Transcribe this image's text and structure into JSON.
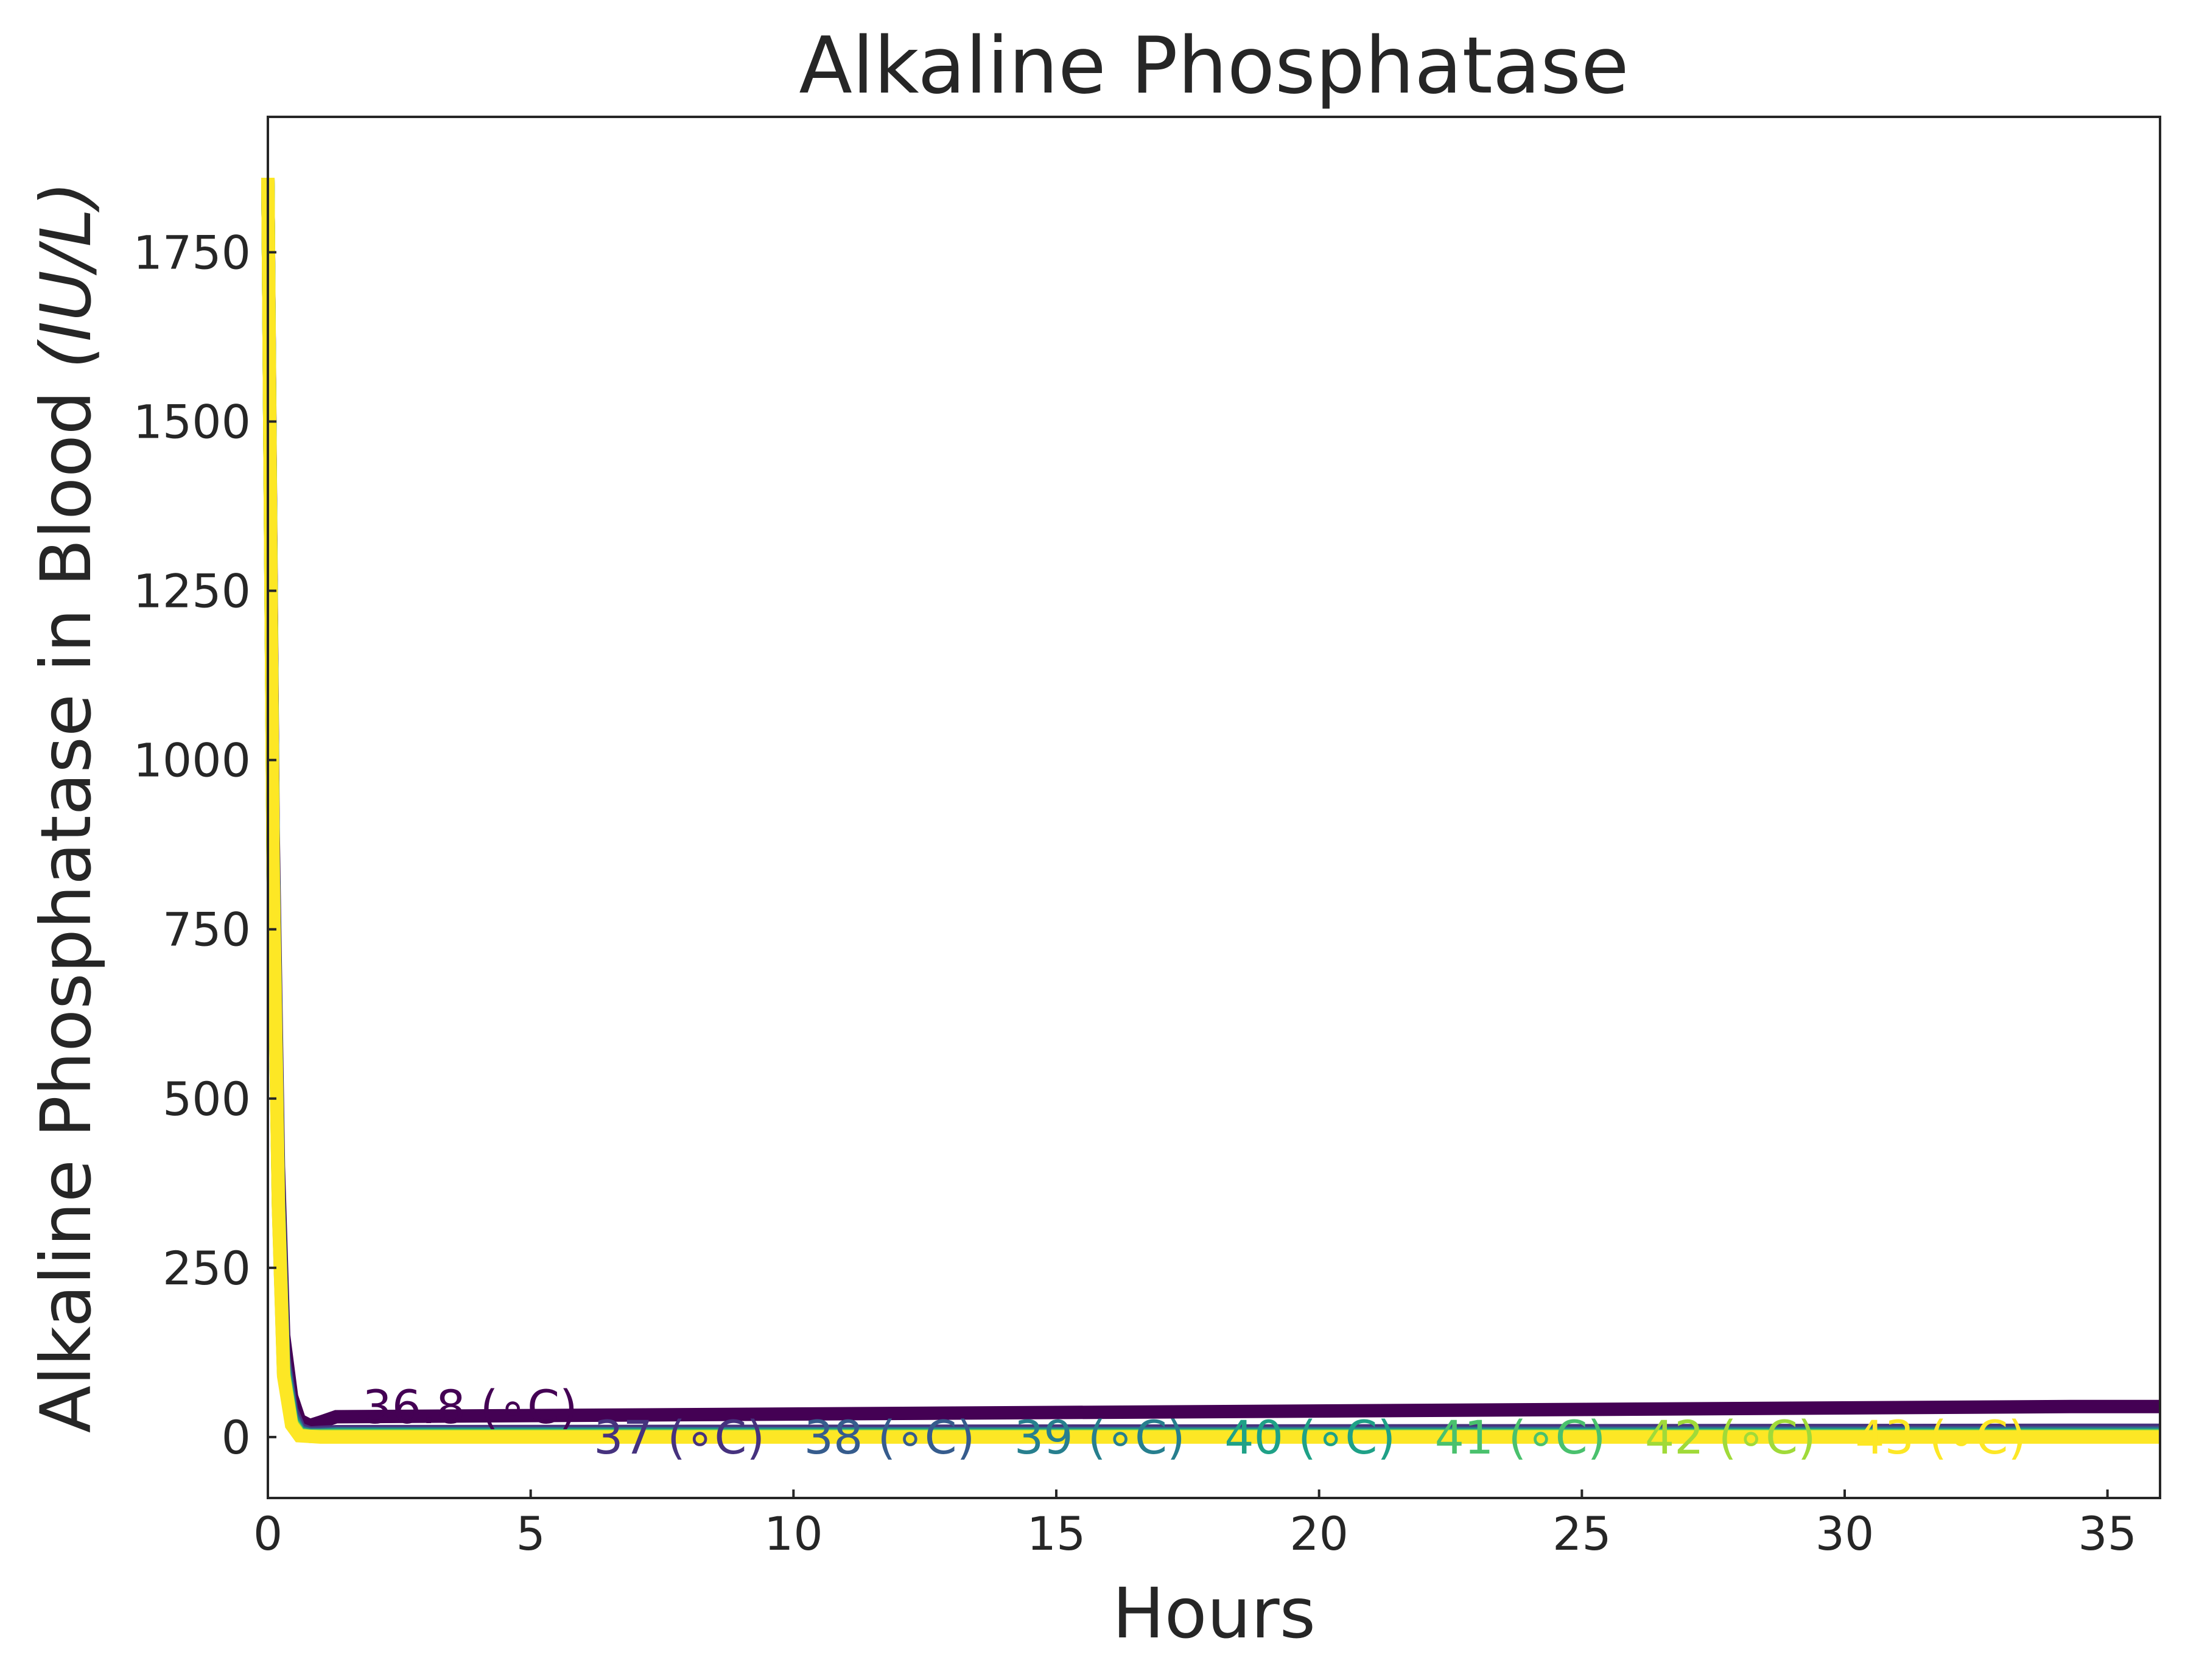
{
  "chart_data": {
    "type": "line",
    "title": "Alkaline Phosphatase",
    "xlabel": "Hours",
    "ylabel_main": "Alkaline Phosphatase in Blood ",
    "ylabel_unit": "(IU/L)",
    "xlim": [
      0,
      36
    ],
    "ylim": [
      -90,
      1950
    ],
    "xticks": [
      0,
      5,
      10,
      15,
      20,
      25,
      30,
      35
    ],
    "yticks": [
      0,
      250,
      500,
      750,
      1000,
      1250,
      1500,
      1750
    ],
    "grid": false,
    "series": [
      {
        "name": "36.8 (∘C)",
        "color": "#440154",
        "x": [
          0,
          0.1,
          0.2,
          0.3,
          0.45,
          0.6,
          0.8,
          1.0,
          1.3,
          34.3,
          36
        ],
        "y": [
          1860,
          900,
          400,
          150,
          60,
          25,
          17,
          22,
          30,
          45,
          45
        ]
      },
      {
        "name": "37 (∘C)",
        "color": "#46327e",
        "x": [
          0,
          0.1,
          0.2,
          0.3,
          0.45,
          0.6,
          0.8,
          1.0,
          1.3,
          34.3,
          36
        ],
        "y": [
          1860,
          870,
          370,
          120,
          40,
          12,
          6,
          7,
          8,
          10,
          10
        ]
      },
      {
        "name": "38 (∘C)",
        "color": "#365c8d",
        "x": [
          0,
          0.1,
          0.2,
          0.3,
          0.45,
          0.6,
          0.8,
          1.0,
          1.3,
          34.3,
          36
        ],
        "y": [
          1860,
          860,
          360,
          110,
          32,
          8,
          4,
          4,
          5,
          6,
          6
        ]
      },
      {
        "name": "39 (∘C)",
        "color": "#277f8e",
        "x": [
          0,
          0.1,
          0.2,
          0.3,
          0.45,
          0.6,
          0.8,
          1.0,
          1.3,
          34.3,
          36
        ],
        "y": [
          1860,
          855,
          355,
          105,
          28,
          6,
          3,
          3,
          4,
          4,
          4
        ]
      },
      {
        "name": "40 (∘C)",
        "color": "#1fa187",
        "x": [
          0,
          0.1,
          0.2,
          0.3,
          0.45,
          0.6,
          0.8,
          1.0,
          1.3,
          34.3,
          36
        ],
        "y": [
          1860,
          850,
          350,
          100,
          25,
          5,
          2,
          2,
          3,
          3,
          3
        ]
      },
      {
        "name": "41 (∘C)",
        "color": "#4ac16d",
        "x": [
          0,
          0.1,
          0.2,
          0.3,
          0.45,
          0.6,
          0.8,
          1.0,
          1.3,
          34.3,
          36
        ],
        "y": [
          1860,
          845,
          345,
          95,
          22,
          4,
          2,
          2,
          2,
          2,
          2
        ]
      },
      {
        "name": "42 (∘C)",
        "color": "#a0da39",
        "x": [
          0,
          0.1,
          0.2,
          0.3,
          0.45,
          0.6,
          0.8,
          1.0,
          1.3,
          34.3,
          36
        ],
        "y": [
          1860,
          842,
          342,
          92,
          20,
          3,
          1,
          1,
          1,
          1,
          1
        ]
      },
      {
        "name": "43 (∘C)",
        "color": "#fde725",
        "x": [
          0,
          0.1,
          0.2,
          0.3,
          0.45,
          0.6,
          0.8,
          1.0,
          1.3,
          34.3,
          36
        ],
        "y": [
          1860,
          840,
          340,
          90,
          18,
          2,
          1,
          0,
          0,
          0,
          0
        ]
      }
    ],
    "annotations": [
      {
        "text": "36.8 (∘C)",
        "color": "#440154",
        "x": 1.8,
        "y": 45
      },
      {
        "text": "37 (∘C)",
        "color": "#46327e",
        "x": 6.2,
        "y": 0
      },
      {
        "text": "38 (∘C)",
        "color": "#365c8d",
        "x": 10.2,
        "y": 0
      },
      {
        "text": "39 (∘C)",
        "color": "#277f8e",
        "x": 14.2,
        "y": 0
      },
      {
        "text": "40 (∘C)",
        "color": "#1fa187",
        "x": 18.2,
        "y": 0
      },
      {
        "text": "41 (∘C)",
        "color": "#4ac16d",
        "x": 22.2,
        "y": 0
      },
      {
        "text": "42 (∘C)",
        "color": "#a0da39",
        "x": 26.2,
        "y": 0
      },
      {
        "text": "43 (∘C)",
        "color": "#fde725",
        "x": 30.2,
        "y": 0
      }
    ]
  }
}
